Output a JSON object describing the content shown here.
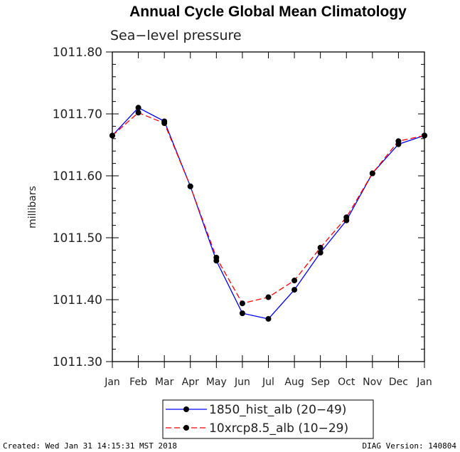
{
  "chart_data": {
    "type": "line",
    "title": "Annual Cycle Global Mean Climatology",
    "subtitle": "Sea−level pressure",
    "ylabel": "millibars",
    "xlabel": "",
    "categories": [
      "Jan",
      "Feb",
      "Mar",
      "Apr",
      "May",
      "Jun",
      "Jul",
      "Aug",
      "Sep",
      "Oct",
      "Nov",
      "Dec",
      "Jan"
    ],
    "ylim": [
      1011.3,
      1011.8
    ],
    "yticks": [
      "1011.30",
      "1011.40",
      "1011.50",
      "1011.60",
      "1011.70",
      "1011.80"
    ],
    "grid": false,
    "legend_position": "bottom-center",
    "series": [
      {
        "name": "1850_hist_alb (20−49)",
        "color": "#0000ff",
        "dash": "solid",
        "values": [
          1011.665,
          1011.71,
          1011.688,
          1011.583,
          1011.463,
          1011.378,
          1011.369,
          1011.416,
          1011.476,
          1011.528,
          1011.604,
          1011.651,
          1011.665
        ]
      },
      {
        "name": "10xrcp8.5_alb (10−29)",
        "color": "#ff0000",
        "dash": "dashed",
        "values": [
          1011.665,
          1011.702,
          1011.685,
          1011.583,
          1011.468,
          1011.394,
          1011.404,
          1011.431,
          1011.484,
          1011.533,
          1011.604,
          1011.656,
          1011.665
        ]
      }
    ]
  },
  "footer": {
    "created": "Created: Wed Jan 31 14:15:31 MST 2018",
    "version": "DIAG Version: 140804"
  }
}
